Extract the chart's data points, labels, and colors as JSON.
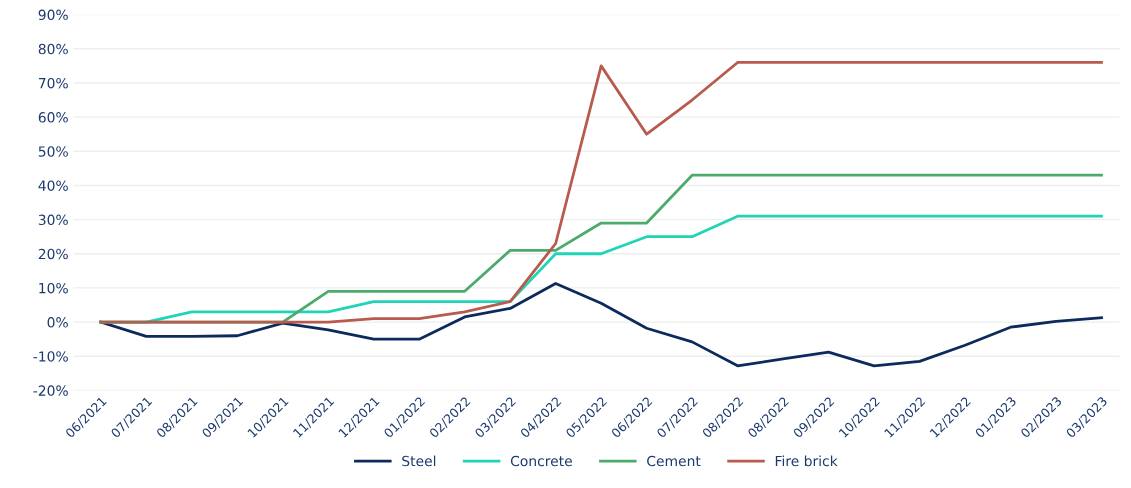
{
  "chart_data": {
    "type": "line",
    "categories": [
      "06/2021",
      "07/2021",
      "08/2021",
      "09/2021",
      "10/2021",
      "11/2021",
      "12/2021",
      "01/2022",
      "02/2022",
      "03/2022",
      "04/2022",
      "05/2022",
      "06/2022",
      "07/2022",
      "08/2022",
      "08/2022",
      "09/2022",
      "10/2022",
      "11/2022",
      "12/2022",
      "01/2023",
      "02/2023",
      "03/2023"
    ],
    "series": [
      {
        "name": "Steel",
        "color": "#0d2a5c",
        "values": [
          0,
          -4.2,
          -4.2,
          -4,
          -0.3,
          -2.3,
          -5,
          -5,
          1.5,
          4,
          11.3,
          5.5,
          -1.8,
          -5.8,
          -12.8,
          -10.8,
          -8.8,
          -12.8,
          -11.5,
          -6.8,
          -1.5,
          0.2,
          1.3
        ]
      },
      {
        "name": "Concrete",
        "color": "#1fd4b8",
        "values": [
          0,
          0,
          3,
          3,
          3,
          3,
          6,
          6,
          6,
          6,
          20,
          20,
          25,
          25,
          31,
          31,
          31,
          31,
          31,
          31,
          31,
          31,
          31
        ]
      },
      {
        "name": "Cement",
        "color": "#4caa6a",
        "values": [
          0,
          0,
          0,
          0,
          0,
          9,
          9,
          9,
          9,
          21,
          21,
          29,
          29,
          43,
          43,
          43,
          43,
          43,
          43,
          43,
          43,
          43,
          43
        ]
      },
      {
        "name": "Fire brick",
        "color": "#b85a4e",
        "values": [
          0,
          0,
          0,
          0,
          0,
          0,
          1,
          1,
          3,
          6,
          23,
          75,
          55,
          65,
          76,
          76,
          76,
          76,
          76,
          76,
          76,
          76,
          76
        ]
      }
    ],
    "ylim": [
      -20,
      90
    ],
    "yticks": [
      {
        "value": -20,
        "label": "-20%"
      },
      {
        "value": -10,
        "label": "-10%"
      },
      {
        "value": 0,
        "label": "0%"
      },
      {
        "value": 10,
        "label": "10%"
      },
      {
        "value": 20,
        "label": "20%"
      },
      {
        "value": 30,
        "label": "30%"
      },
      {
        "value": 40,
        "label": "40%"
      },
      {
        "value": 50,
        "label": "50%"
      },
      {
        "value": 60,
        "label": "60%"
      },
      {
        "value": 70,
        "label": "70%"
      },
      {
        "value": 80,
        "label": "80%"
      },
      {
        "value": 90,
        "label": "90%"
      }
    ],
    "grid": "y",
    "legend": "bottom",
    "marker": "none",
    "line_style": "solid"
  }
}
